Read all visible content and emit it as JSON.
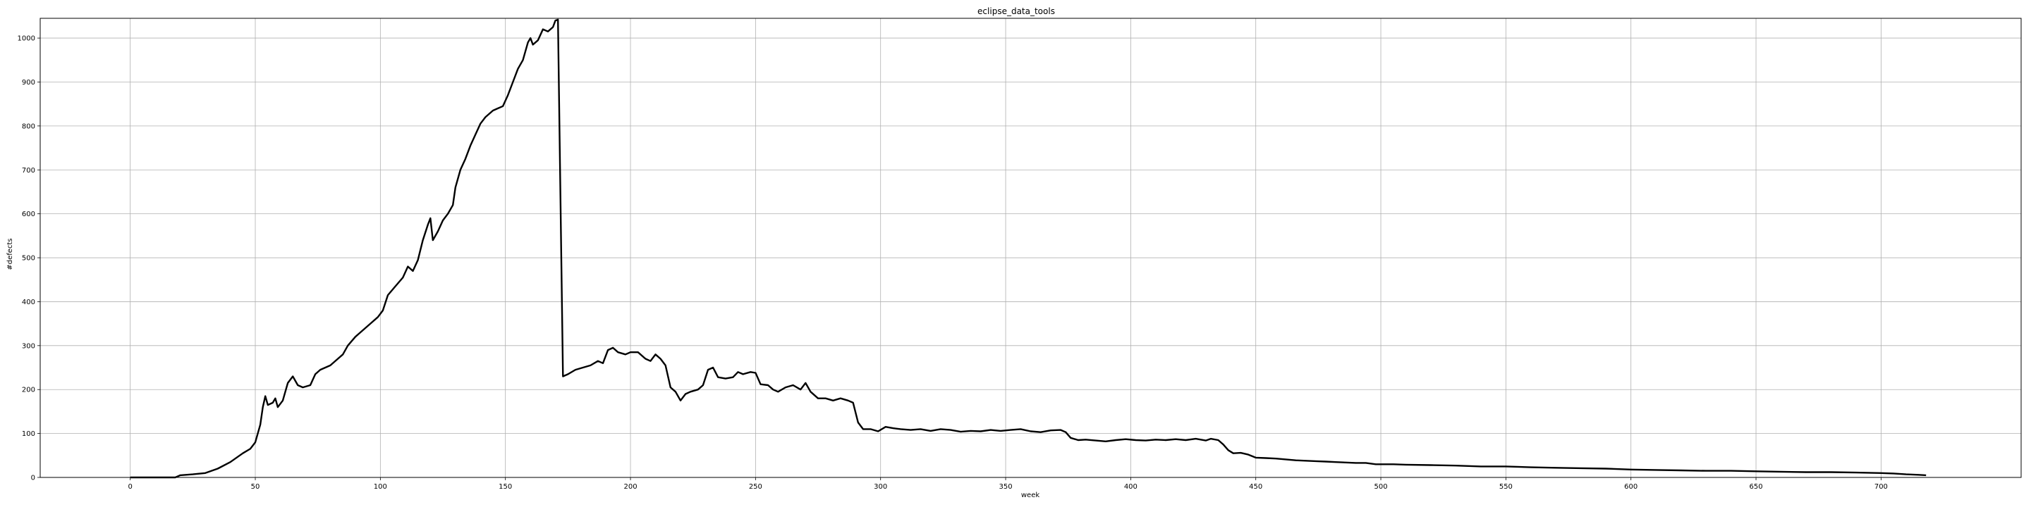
{
  "chart_data": {
    "type": "line",
    "title": "eclipse_data_tools",
    "xlabel": "week",
    "ylabel": "#defects",
    "xlim": [
      -36,
      756
    ],
    "ylim": [
      0,
      1045
    ],
    "grid": true,
    "x_ticks": [
      0,
      50,
      100,
      150,
      200,
      250,
      300,
      350,
      400,
      450,
      500,
      550,
      600,
      650,
      700
    ],
    "y_ticks": [
      0,
      100,
      200,
      300,
      400,
      500,
      600,
      700,
      800,
      900,
      1000
    ],
    "line_color": "#000000",
    "series": [
      {
        "points": [
          [
            0,
            0
          ],
          [
            10,
            0
          ],
          [
            18,
            0
          ],
          [
            20,
            5
          ],
          [
            25,
            7
          ],
          [
            30,
            10
          ],
          [
            35,
            20
          ],
          [
            40,
            35
          ],
          [
            45,
            55
          ],
          [
            48,
            65
          ],
          [
            50,
            80
          ],
          [
            52,
            120
          ],
          [
            53,
            160
          ],
          [
            54,
            185
          ],
          [
            55,
            165
          ],
          [
            57,
            170
          ],
          [
            58,
            180
          ],
          [
            59,
            160
          ],
          [
            61,
            175
          ],
          [
            63,
            215
          ],
          [
            65,
            230
          ],
          [
            67,
            210
          ],
          [
            69,
            205
          ],
          [
            72,
            210
          ],
          [
            74,
            235
          ],
          [
            76,
            245
          ],
          [
            80,
            255
          ],
          [
            83,
            270
          ],
          [
            85,
            280
          ],
          [
            87,
            300
          ],
          [
            90,
            320
          ],
          [
            93,
            335
          ],
          [
            96,
            350
          ],
          [
            99,
            365
          ],
          [
            101,
            380
          ],
          [
            103,
            415
          ],
          [
            106,
            435
          ],
          [
            109,
            455
          ],
          [
            111,
            480
          ],
          [
            113,
            470
          ],
          [
            115,
            495
          ],
          [
            117,
            540
          ],
          [
            119,
            575
          ],
          [
            120,
            590
          ],
          [
            121,
            540
          ],
          [
            123,
            560
          ],
          [
            125,
            585
          ],
          [
            127,
            600
          ],
          [
            129,
            620
          ],
          [
            130,
            660
          ],
          [
            132,
            700
          ],
          [
            134,
            725
          ],
          [
            136,
            755
          ],
          [
            138,
            780
          ],
          [
            140,
            805
          ],
          [
            142,
            820
          ],
          [
            145,
            835
          ],
          [
            147,
            840
          ],
          [
            149,
            845
          ],
          [
            151,
            870
          ],
          [
            153,
            900
          ],
          [
            155,
            930
          ],
          [
            157,
            950
          ],
          [
            159,
            990
          ],
          [
            160,
            1000
          ],
          [
            161,
            985
          ],
          [
            163,
            995
          ],
          [
            165,
            1020
          ],
          [
            167,
            1015
          ],
          [
            169,
            1025
          ],
          [
            170,
            1040
          ],
          [
            171,
            1042
          ],
          [
            173,
            230
          ],
          [
            175,
            235
          ],
          [
            178,
            245
          ],
          [
            181,
            250
          ],
          [
            184,
            255
          ],
          [
            187,
            265
          ],
          [
            189,
            260
          ],
          [
            191,
            290
          ],
          [
            193,
            295
          ],
          [
            195,
            285
          ],
          [
            198,
            280
          ],
          [
            200,
            285
          ],
          [
            203,
            285
          ],
          [
            206,
            270
          ],
          [
            208,
            265
          ],
          [
            210,
            280
          ],
          [
            212,
            270
          ],
          [
            214,
            255
          ],
          [
            216,
            205
          ],
          [
            218,
            195
          ],
          [
            220,
            175
          ],
          [
            222,
            190
          ],
          [
            224,
            195
          ],
          [
            227,
            200
          ],
          [
            229,
            210
          ],
          [
            231,
            245
          ],
          [
            233,
            250
          ],
          [
            235,
            228
          ],
          [
            238,
            225
          ],
          [
            241,
            228
          ],
          [
            243,
            240
          ],
          [
            245,
            235
          ],
          [
            248,
            240
          ],
          [
            250,
            238
          ],
          [
            252,
            212
          ],
          [
            255,
            210
          ],
          [
            257,
            200
          ],
          [
            259,
            195
          ],
          [
            262,
            205
          ],
          [
            265,
            210
          ],
          [
            268,
            200
          ],
          [
            270,
            215
          ],
          [
            272,
            195
          ],
          [
            275,
            180
          ],
          [
            278,
            180
          ],
          [
            281,
            175
          ],
          [
            284,
            180
          ],
          [
            287,
            175
          ],
          [
            289,
            170
          ],
          [
            291,
            125
          ],
          [
            293,
            110
          ],
          [
            296,
            110
          ],
          [
            299,
            105
          ],
          [
            302,
            115
          ],
          [
            305,
            112
          ],
          [
            308,
            110
          ],
          [
            312,
            108
          ],
          [
            316,
            110
          ],
          [
            320,
            106
          ],
          [
            324,
            110
          ],
          [
            328,
            108
          ],
          [
            332,
            104
          ],
          [
            336,
            106
          ],
          [
            340,
            105
          ],
          [
            344,
            108
          ],
          [
            348,
            106
          ],
          [
            352,
            108
          ],
          [
            356,
            110
          ],
          [
            360,
            105
          ],
          [
            364,
            103
          ],
          [
            368,
            107
          ],
          [
            372,
            108
          ],
          [
            374,
            103
          ],
          [
            376,
            90
          ],
          [
            379,
            85
          ],
          [
            382,
            86
          ],
          [
            386,
            84
          ],
          [
            390,
            82
          ],
          [
            394,
            85
          ],
          [
            398,
            87
          ],
          [
            402,
            85
          ],
          [
            406,
            84
          ],
          [
            410,
            86
          ],
          [
            414,
            85
          ],
          [
            418,
            87
          ],
          [
            422,
            85
          ],
          [
            426,
            88
          ],
          [
            430,
            84
          ],
          [
            432,
            88
          ],
          [
            435,
            85
          ],
          [
            437,
            75
          ],
          [
            439,
            62
          ],
          [
            441,
            55
          ],
          [
            444,
            56
          ],
          [
            447,
            52
          ],
          [
            450,
            45
          ],
          [
            454,
            44
          ],
          [
            458,
            43
          ],
          [
            462,
            41
          ],
          [
            466,
            39
          ],
          [
            470,
            38
          ],
          [
            474,
            37
          ],
          [
            478,
            36
          ],
          [
            482,
            35
          ],
          [
            486,
            34
          ],
          [
            490,
            33
          ],
          [
            494,
            33
          ],
          [
            498,
            30
          ],
          [
            505,
            30
          ],
          [
            510,
            29
          ],
          [
            520,
            28
          ],
          [
            530,
            27
          ],
          [
            540,
            25
          ],
          [
            550,
            25
          ],
          [
            560,
            23
          ],
          [
            570,
            22
          ],
          [
            580,
            21
          ],
          [
            590,
            20
          ],
          [
            600,
            18
          ],
          [
            610,
            17
          ],
          [
            620,
            16
          ],
          [
            630,
            15
          ],
          [
            640,
            15
          ],
          [
            650,
            14
          ],
          [
            660,
            13
          ],
          [
            670,
            12
          ],
          [
            680,
            12
          ],
          [
            690,
            11
          ],
          [
            700,
            10
          ],
          [
            705,
            9
          ],
          [
            710,
            7
          ],
          [
            715,
            6
          ],
          [
            718,
            5
          ]
        ]
      }
    ]
  }
}
